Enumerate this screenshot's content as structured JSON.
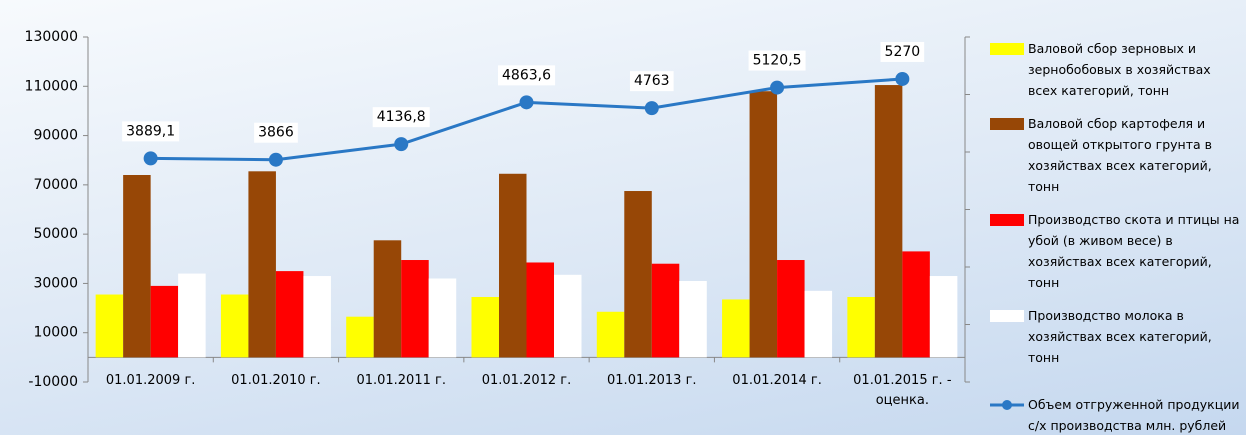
{
  "chart_data": {
    "type": "bar",
    "categories": [
      "01.01.2009 г.",
      "01.01.2010 г.",
      "01.01.2011 г.",
      "01.01.2012 г.",
      "01.01.2013 г.",
      "01.01.2014 г.",
      "01.01.2015 г. - оценка."
    ],
    "series": [
      {
        "name": "Валовой сбор зерновых и зернобобовых в хозяйствах всех категорий, тонн",
        "color": "#ffff00",
        "values": [
          25500,
          25500,
          16500,
          24500,
          18500,
          23500,
          24500
        ]
      },
      {
        "name": "Валовой сбор картофеля и овощей открытого грунта в хозяйствах всех категорий, тонн",
        "color": "#974706",
        "values": [
          74000,
          75500,
          47500,
          74500,
          67500,
          108000,
          110500
        ]
      },
      {
        "name": "Производство скота и птицы на убой (в живом весе) в хозяйствах всех категорий, тонн",
        "color": "#ff0000",
        "values": [
          29000,
          35000,
          39500,
          38500,
          38000,
          39500,
          43000
        ]
      },
      {
        "name": "Производство молока в хозяйствах всех категорий, тонн",
        "color": "#ffffff",
        "values": [
          34000,
          33000,
          32000,
          33500,
          31000,
          27000,
          33000
        ]
      },
      {
        "name": "Объем отгруженной продукции с/х производства млн. рублей",
        "color": "#2a78c5",
        "type": "line",
        "axis": "y2",
        "values": [
          3889.1,
          3866,
          4136.8,
          4863.6,
          4763,
          5120.5,
          5270
        ],
        "value_labels": [
          "3889,1",
          "3866",
          "4136,8",
          "4863,6",
          "4763",
          "5120,5",
          "5270"
        ]
      }
    ],
    "ylim": [
      -10000,
      130000
    ],
    "yticks": [
      -10000,
      10000,
      30000,
      50000,
      70000,
      90000,
      110000,
      130000
    ],
    "y2lim": [
      0,
      6000
    ],
    "y2ticks": [
      0,
      1000,
      2000,
      3000,
      4000,
      5000,
      6000
    ],
    "legend": "right"
  }
}
